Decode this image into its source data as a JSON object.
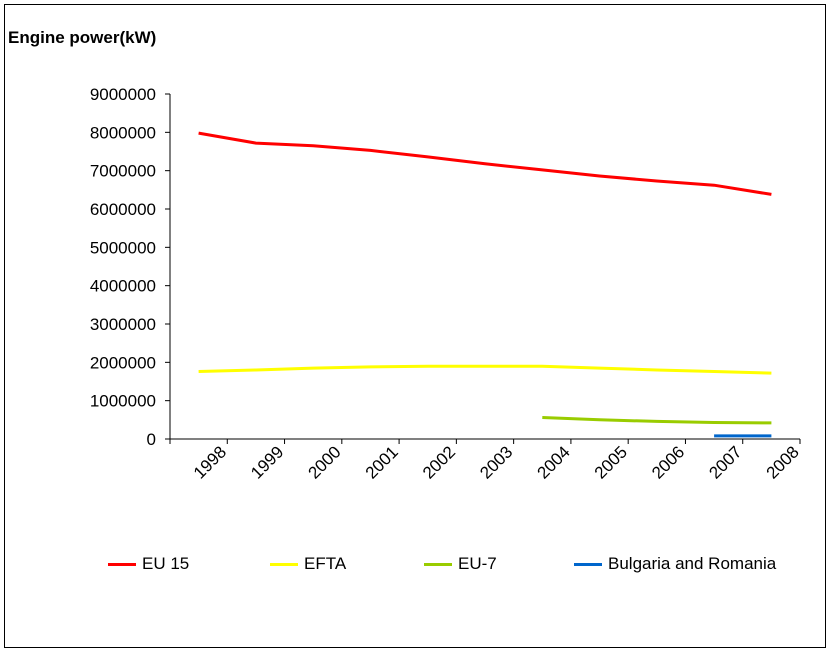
{
  "chart_data": {
    "type": "line",
    "ylabel": "Engine power(kW)",
    "xlabel": "",
    "categories": [
      "1998",
      "1999",
      "2000",
      "2001",
      "2002",
      "2003",
      "2004",
      "2005",
      "2006",
      "2007",
      "2008"
    ],
    "ylim": [
      0,
      9000000
    ],
    "yticks": [
      "0",
      "1000000",
      "2000000",
      "3000000",
      "4000000",
      "5000000",
      "6000000",
      "7000000",
      "8000000",
      "9000000"
    ],
    "legend_position": "bottom",
    "series": [
      {
        "name": "EU 15",
        "color": "#ff0000",
        "values": [
          7980000,
          7720000,
          7650000,
          7530000,
          7360000,
          7180000,
          7020000,
          6860000,
          6730000,
          6620000,
          6380000
        ]
      },
      {
        "name": "EFTA",
        "color": "#ffff00",
        "values": [
          1760000,
          1800000,
          1850000,
          1880000,
          1900000,
          1900000,
          1900000,
          1850000,
          1800000,
          1760000,
          1720000
        ]
      },
      {
        "name": "EU-7",
        "color": "#99cc00",
        "values": [
          null,
          null,
          null,
          null,
          null,
          null,
          560000,
          500000,
          460000,
          430000,
          420000
        ]
      },
      {
        "name": "Bulgaria and Romania",
        "color": "#0066cc",
        "values": [
          null,
          null,
          null,
          null,
          null,
          null,
          null,
          null,
          null,
          80000,
          80000
        ]
      }
    ]
  }
}
